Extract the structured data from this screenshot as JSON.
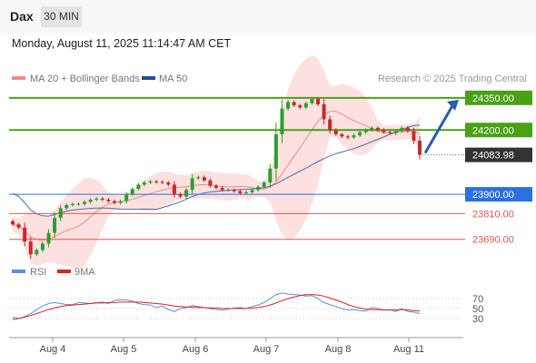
{
  "header": {
    "instrument": "Dax",
    "timeframe": "30 MIN",
    "datetime": "Monday, August 11, 2025 11:14:47 AM CET"
  },
  "legend": {
    "bollinger_label": "MA 20 + Bollinger Bands",
    "ma50_label": "MA 50",
    "copyright": "Research © 2025 Trading Central"
  },
  "colors": {
    "bollinger": "#f08a86",
    "band_fill": "#fde1e1",
    "ma50": "#1f4e99",
    "level_green": "#4aa016",
    "level_blue": "#2d6fe0",
    "level_red": "#e0574f",
    "arrow": "#2a5caa",
    "rsi": "#5b8def",
    "rsi_ma": "#e02020",
    "candle_up": "#2e9e2e",
    "candle_down": "#c82828"
  },
  "chart_data": [
    {
      "type": "candlestick",
      "title": "",
      "x_ticks": [
        "Aug 4",
        "Aug 5",
        "Aug 6",
        "Aug 7",
        "Aug 8",
        "Aug 11"
      ],
      "ylim": [
        23600,
        24400
      ],
      "current_price": 24083.98,
      "levels": [
        {
          "value": 24350.0,
          "label": "24350.00",
          "style": "resistance-box"
        },
        {
          "value": 24200.0,
          "label": "24200.00",
          "style": "resistance-box"
        },
        {
          "value": 24083.98,
          "label": "24083.98",
          "style": "current-price"
        },
        {
          "value": 23900.0,
          "label": "23900.00",
          "style": "pivot-box"
        },
        {
          "value": 23810.0,
          "label": "23810.00",
          "style": "support-line"
        },
        {
          "value": 23690.0,
          "label": "23690.00",
          "style": "support-line"
        }
      ],
      "closes": [
        23760,
        23745,
        23680,
        23620,
        23640,
        23670,
        23720,
        23790,
        23835,
        23850,
        23855,
        23855,
        23865,
        23875,
        23880,
        23875,
        23868,
        23860,
        23868,
        23900,
        23925,
        23945,
        23955,
        23960,
        23958,
        23955,
        23945,
        23900,
        23890,
        23920,
        23975,
        23980,
        23965,
        23940,
        23930,
        23920,
        23920,
        23915,
        23905,
        23910,
        23920,
        23935,
        23955,
        24020,
        24180,
        24300,
        24330,
        24315,
        24305,
        24325,
        24345,
        24320,
        24250,
        24200,
        24180,
        24170,
        24165,
        24175,
        24190,
        24200,
        24210,
        24200,
        24190,
        24185,
        24195,
        24210,
        24195,
        24150,
        24085
      ],
      "trend_arrow": {
        "from": 24083.98,
        "to": 24350.0
      },
      "series": [
        {
          "name": "MA 20 + Bollinger Bands"
        },
        {
          "name": "MA 50"
        }
      ]
    },
    {
      "type": "line",
      "title": "",
      "ylim": [
        0,
        100
      ],
      "y_ticks": [
        70,
        50,
        30
      ],
      "series": [
        {
          "name": "RSI",
          "values": [
            33,
            30,
            34,
            40,
            48,
            55,
            60,
            62,
            60,
            58,
            58,
            62,
            61,
            60,
            62,
            63,
            60,
            66,
            68,
            67,
            65,
            60,
            58,
            57,
            52,
            55,
            48,
            44,
            50,
            52,
            56,
            54,
            52,
            50,
            48,
            47,
            49,
            51,
            52,
            50,
            54,
            57,
            62,
            70,
            78,
            81,
            79,
            78,
            77,
            75,
            76,
            70,
            62,
            58,
            54,
            50,
            47,
            48,
            46,
            45,
            52,
            50,
            47,
            48,
            44,
            50,
            44,
            43,
            40
          ]
        },
        {
          "name": "9MA",
          "values": [
            28,
            30,
            33,
            36,
            40,
            44,
            48,
            51,
            54,
            56,
            57,
            58,
            59,
            60,
            61,
            61,
            62,
            62,
            63,
            63,
            63,
            63,
            62,
            61,
            60,
            59,
            57,
            55,
            54,
            53,
            53,
            52,
            52,
            51,
            51,
            50,
            50,
            50,
            50,
            50,
            51,
            52,
            54,
            57,
            61,
            66,
            70,
            73,
            76,
            78,
            78,
            77,
            75,
            71,
            67,
            63,
            58,
            54,
            51,
            49,
            48,
            48,
            47,
            47,
            47,
            48,
            47,
            46,
            45
          ]
        }
      ]
    }
  ]
}
